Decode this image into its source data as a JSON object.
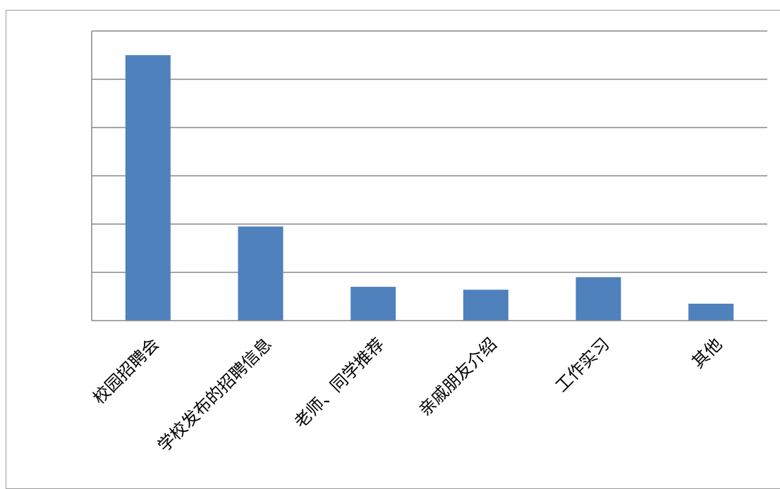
{
  "chart_data": {
    "type": "bar",
    "categories": [
      "校园招聘会",
      "学校发布的招聘信息",
      "老师、同学推荐",
      "亲戚朋友介绍",
      "工作实习",
      "其他"
    ],
    "values": [
      55,
      19.5,
      7,
      6.4,
      9,
      3.5
    ],
    "ylim": [
      0,
      60
    ],
    "y_gridlines": [
      10,
      20,
      30,
      40,
      50,
      60
    ],
    "grid": true,
    "legend": "none",
    "bar_color": "#4f81bd",
    "grid_color": "#878787",
    "axis_color": "#878787",
    "title": "",
    "xlabel": "",
    "ylabel": ""
  }
}
